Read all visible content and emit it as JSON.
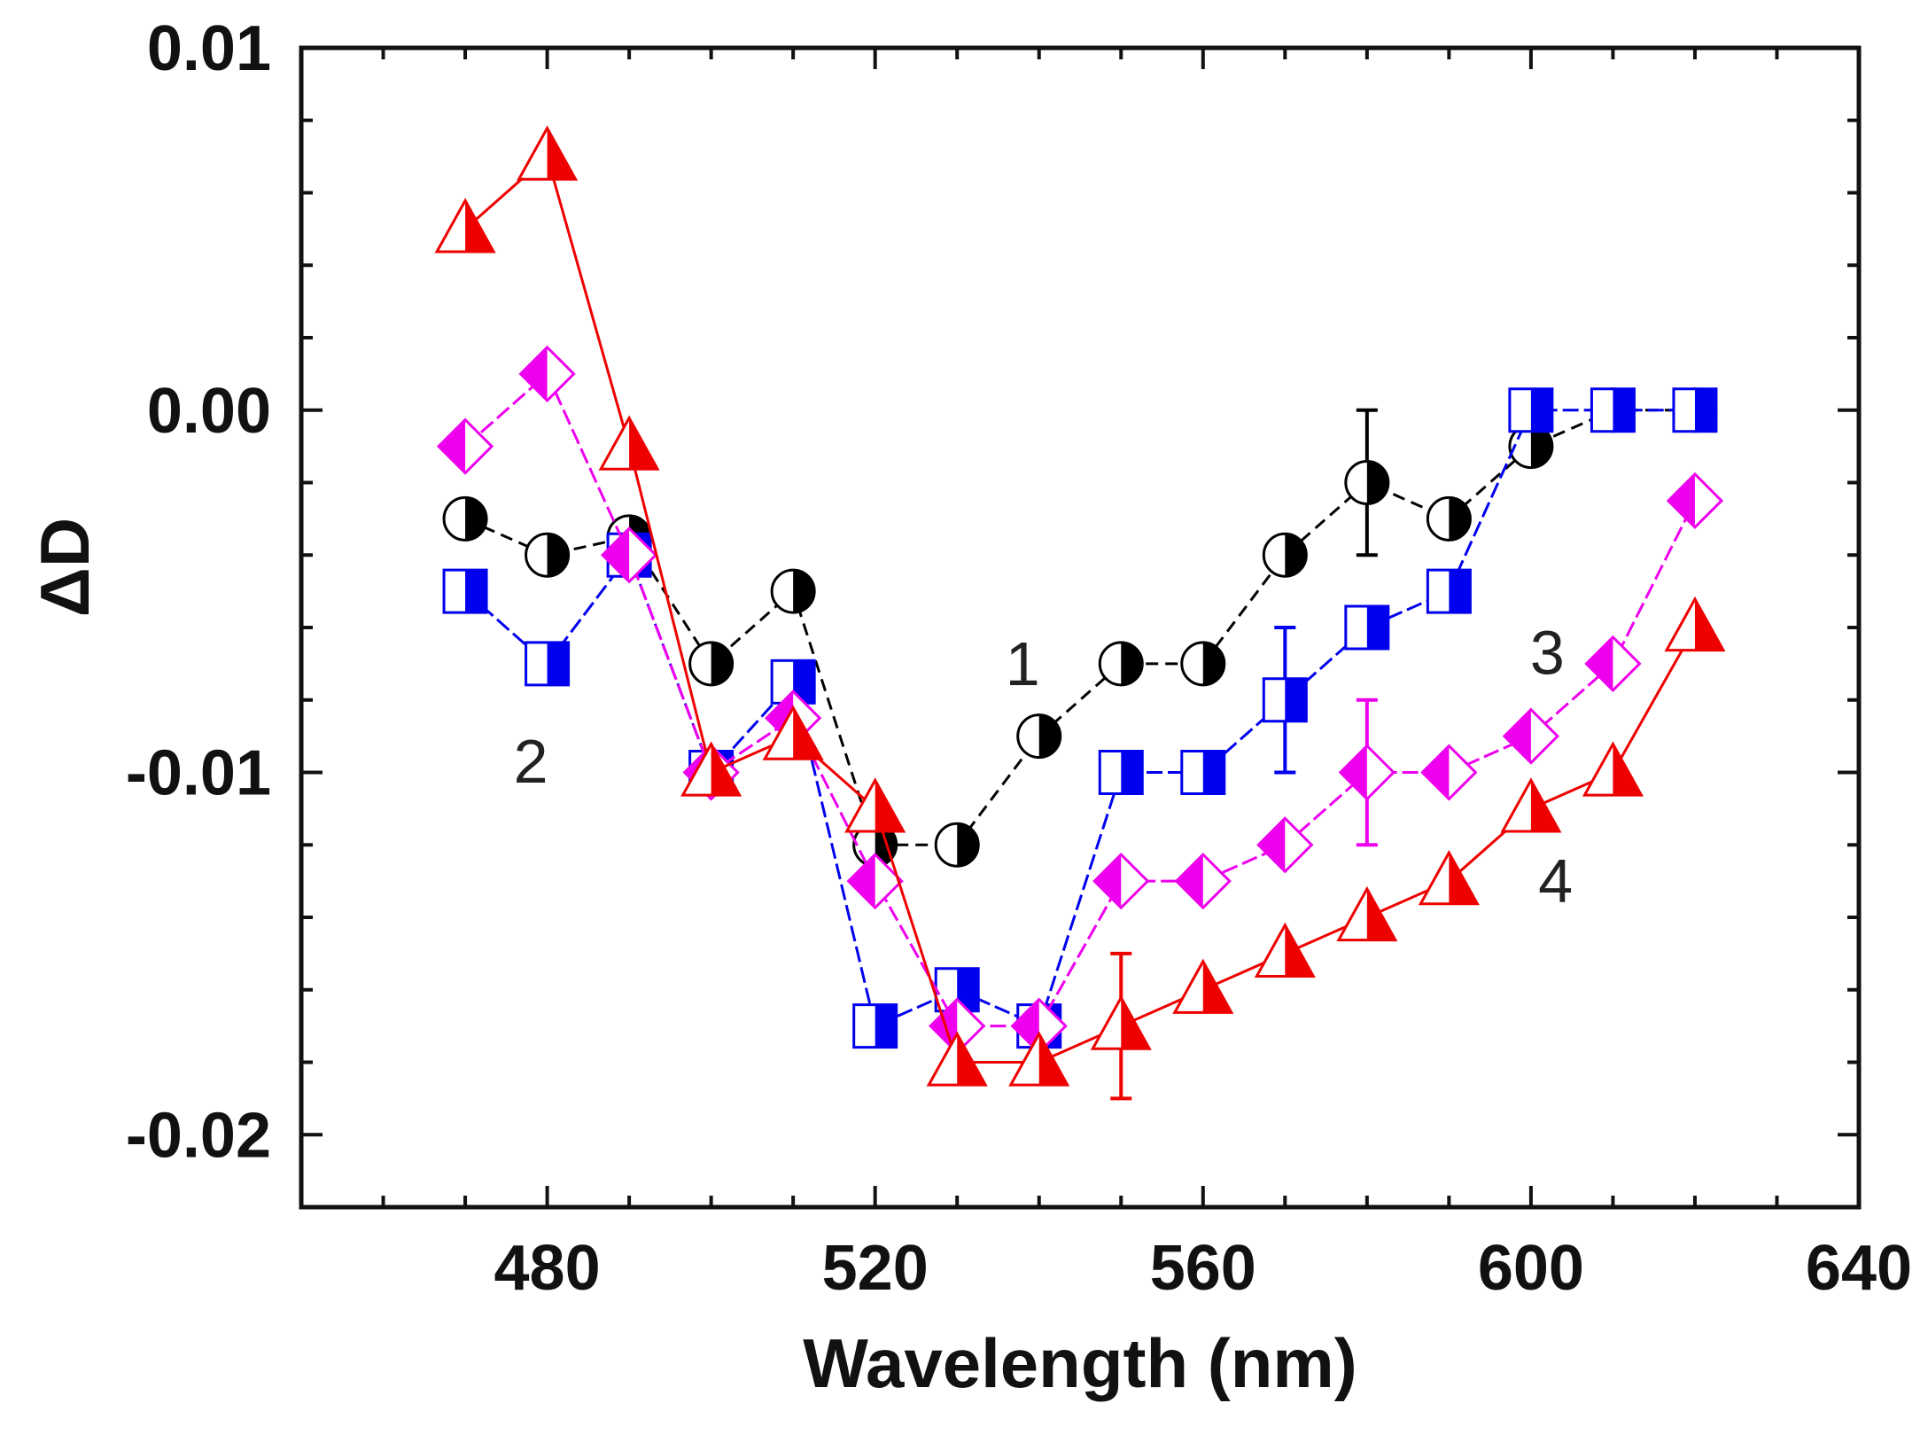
{
  "chart_data": {
    "type": "line",
    "title": "",
    "xlabel": "Wavelength (nm)",
    "ylabel": "ΔD",
    "xlim": [
      450,
      640
    ],
    "ylim": [
      -0.022,
      0.01
    ],
    "xticks": [
      480,
      520,
      560,
      600,
      640
    ],
    "xtick_labels": [
      "480",
      "520",
      "560",
      "600",
      "640"
    ],
    "yticks": [
      0.01,
      0.0,
      -0.01,
      -0.02
    ],
    "ytick_labels": [
      "0.01",
      "0.00",
      "-0.01",
      "-0.02"
    ],
    "grid": false,
    "series": [
      {
        "name": "1",
        "color": "#000000",
        "marker": "half-filled-circle",
        "x": [
          470,
          480,
          490,
          500,
          510,
          520,
          530,
          540,
          550,
          560,
          570,
          580,
          590,
          600,
          610,
          620
        ],
        "values": [
          -0.003,
          -0.004,
          -0.0035,
          -0.007,
          -0.005,
          -0.012,
          -0.012,
          -0.009,
          -0.007,
          -0.007,
          -0.004,
          -0.002,
          -0.003,
          -0.001,
          0.0,
          0.0
        ],
        "error_bars": [
          {
            "x": 580,
            "y": -0.002,
            "err": 0.002
          }
        ]
      },
      {
        "name": "2",
        "color": "#0000ee",
        "marker": "half-filled-square",
        "x": [
          470,
          480,
          490,
          500,
          510,
          520,
          530,
          540,
          550,
          560,
          570,
          580,
          590,
          600,
          610,
          620
        ],
        "values": [
          -0.005,
          -0.007,
          -0.004,
          -0.01,
          -0.0075,
          -0.017,
          -0.016,
          -0.017,
          -0.01,
          -0.01,
          -0.008,
          -0.006,
          -0.005,
          0.0,
          0.0,
          0.0
        ],
        "error_bars": [
          {
            "x": 570,
            "y": -0.008,
            "err": 0.002
          }
        ]
      },
      {
        "name": "3",
        "color": "#ee00ee",
        "marker": "half-filled-diamond",
        "x": [
          470,
          480,
          490,
          500,
          510,
          520,
          530,
          540,
          550,
          560,
          570,
          580,
          590,
          600,
          610,
          620
        ],
        "values": [
          -0.001,
          0.001,
          -0.004,
          -0.01,
          -0.0085,
          -0.013,
          -0.017,
          -0.017,
          -0.013,
          -0.013,
          -0.012,
          -0.01,
          -0.01,
          -0.009,
          -0.007,
          -0.0025
        ],
        "error_bars": [
          {
            "x": 580,
            "y": -0.01,
            "err": 0.002
          }
        ]
      },
      {
        "name": "4",
        "color": "#ee0000",
        "marker": "half-filled-triangle",
        "x": [
          470,
          480,
          490,
          500,
          510,
          520,
          530,
          540,
          550,
          560,
          570,
          580,
          590,
          600,
          610,
          620
        ],
        "values": [
          0.005,
          0.007,
          -0.001,
          -0.01,
          -0.009,
          -0.011,
          -0.018,
          -0.018,
          -0.017,
          -0.016,
          -0.015,
          -0.014,
          -0.013,
          -0.011,
          -0.01,
          -0.006
        ],
        "error_bars": [
          {
            "x": 550,
            "y": -0.017,
            "err": 0.002
          }
        ]
      }
    ],
    "annotations": [
      {
        "text": "1",
        "x": 538,
        "y": -0.007
      },
      {
        "text": "2",
        "x": 478,
        "y": -0.0097
      },
      {
        "text": "3",
        "x": 602,
        "y": -0.0067
      },
      {
        "text": "4",
        "x": 603,
        "y": -0.013
      }
    ]
  }
}
